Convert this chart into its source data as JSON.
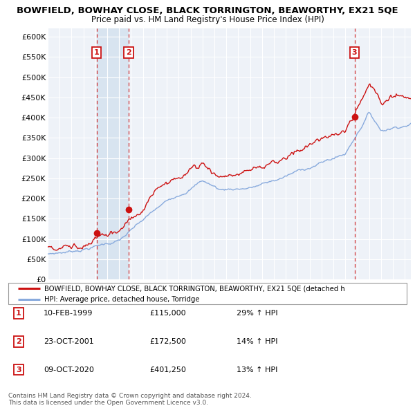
{
  "title": "BOWFIELD, BOWHAY CLOSE, BLACK TORRINGTON, BEAWORTHY, EX21 5QE",
  "subtitle": "Price paid vs. HM Land Registry's House Price Index (HPI)",
  "ylim": [
    0,
    620000
  ],
  "yticks": [
    0,
    50000,
    100000,
    150000,
    200000,
    250000,
    300000,
    350000,
    400000,
    450000,
    500000,
    550000,
    600000
  ],
  "ytick_labels": [
    "£0",
    "£50K",
    "£100K",
    "£150K",
    "£200K",
    "£250K",
    "£300K",
    "£350K",
    "£400K",
    "£450K",
    "£500K",
    "£550K",
    "£600K"
  ],
  "plot_bg_color": "#eef2f8",
  "grid_color": "#ffffff",
  "sale_color": "#cc1111",
  "hpi_color": "#88aadd",
  "shade_color": "#d8e4f0",
  "sale_label": "BOWFIELD, BOWHAY CLOSE, BLACK TORRINGTON, BEAWORTHY, EX21 5QE (detached h",
  "hpi_label": "HPI: Average price, detached house, Torridge",
  "transactions": [
    {
      "label": "1",
      "date": "10-FEB-1999",
      "price": 115000,
      "pct": "29%",
      "x": 1999.1
    },
    {
      "label": "2",
      "date": "23-OCT-2001",
      "price": 172500,
      "pct": "14%",
      "x": 2001.8
    },
    {
      "label": "3",
      "date": "09-OCT-2020",
      "price": 401250,
      "pct": "13%",
      "x": 2020.77
    }
  ],
  "table_rows": [
    [
      "1",
      "10-FEB-1999",
      "£115,000",
      "29% ↑ HPI"
    ],
    [
      "2",
      "23-OCT-2001",
      "£172,500",
      "14% ↑ HPI"
    ],
    [
      "3",
      "09-OCT-2020",
      "£401,250",
      "13% ↑ HPI"
    ]
  ],
  "footer": "Contains HM Land Registry data © Crown copyright and database right 2024.\nThis data is licensed under the Open Government Licence v3.0.",
  "xmin": 1995,
  "xmax": 2025.5
}
